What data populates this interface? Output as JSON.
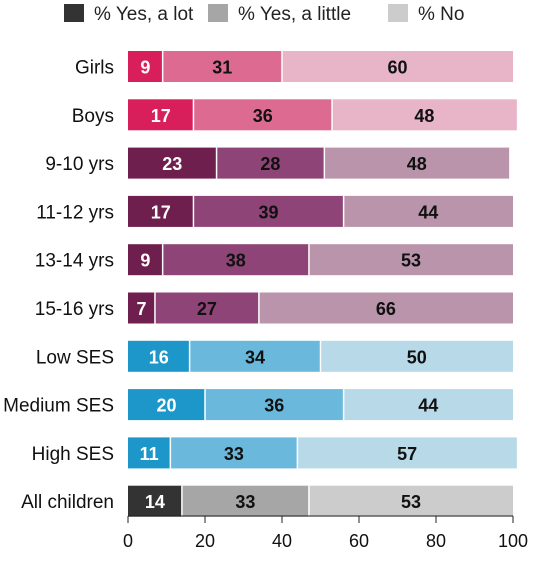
{
  "chart_data": {
    "type": "bar",
    "orientation": "horizontal",
    "stacked": true,
    "categories": [
      "Girls",
      "Boys",
      "9-10 yrs",
      "11-12 yrs",
      "13-14 yrs",
      "15-16 yrs",
      "Low  SES",
      "Medium SES",
      "High SES",
      "All children"
    ],
    "series": [
      {
        "name": "% Yes, a lot",
        "values": [
          9,
          17,
          23,
          17,
          9,
          7,
          16,
          20,
          11,
          14
        ]
      },
      {
        "name": "% Yes, a little",
        "values": [
          31,
          36,
          28,
          39,
          38,
          27,
          34,
          36,
          33,
          33
        ]
      },
      {
        "name": "% No",
        "values": [
          60,
          48,
          48,
          44,
          53,
          66,
          50,
          44,
          57,
          53
        ]
      }
    ],
    "xlim": [
      0,
      100
    ],
    "xticks": [
      "0",
      "20",
      "40",
      "60",
      "80",
      "100"
    ],
    "grid": false,
    "legend_position": "top",
    "legend_colors": [
      "#333333",
      "#a6a6a6",
      "#cccccc"
    ],
    "group_colors": [
      {
        "categories": [
          "Girls",
          "Boys"
        ],
        "colors": [
          "#d81e5b",
          "#dd6b91",
          "#e8b5c8"
        ],
        "label_colors": [
          "#ffffff",
          "#111111",
          "#111111"
        ]
      },
      {
        "categories": [
          "9-10 yrs",
          "11-12 yrs",
          "13-14 yrs",
          "15-16 yrs"
        ],
        "colors": [
          "#6e1f4d",
          "#8e4476",
          "#b994ab"
        ],
        "label_colors": [
          "#ffffff",
          "#111111",
          "#111111"
        ]
      },
      {
        "categories": [
          "Low  SES",
          "Medium SES",
          "High SES"
        ],
        "colors": [
          "#1d97c9",
          "#6ab9dc",
          "#b7d9e8"
        ],
        "label_colors": [
          "#ffffff",
          "#111111",
          "#111111"
        ]
      },
      {
        "categories": [
          "All children"
        ],
        "colors": [
          "#333333",
          "#a6a6a6",
          "#cccccc"
        ],
        "label_colors": [
          "#ffffff",
          "#111111",
          "#111111"
        ]
      }
    ]
  }
}
